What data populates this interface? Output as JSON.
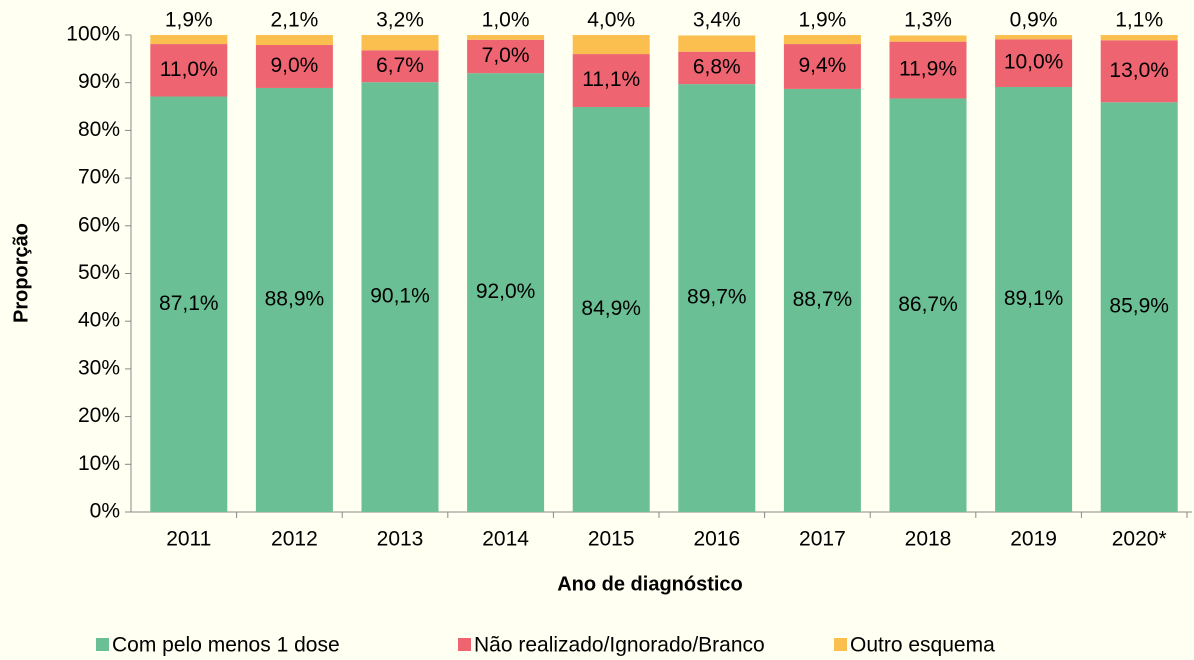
{
  "chart_data": {
    "type": "stacked_bar",
    "x_label": "Ano de diagnóstico",
    "y_label": "Proporção",
    "categories": [
      "2011",
      "2012",
      "2013",
      "2014",
      "2015",
      "2016",
      "2017",
      "2018",
      "2019",
      "2020*"
    ],
    "series": [
      {
        "name": "Com pelo menos 1 dose",
        "color": "#6abf94",
        "values": [
          87.1,
          88.9,
          90.1,
          92.0,
          84.9,
          89.7,
          88.7,
          86.7,
          89.1,
          85.9
        ],
        "value_labels": [
          "87,1%",
          "88,9%",
          "90,1%",
          "92,0%",
          "84,9%",
          "89,7%",
          "88,7%",
          "86,7%",
          "89,1%",
          "85,9%"
        ]
      },
      {
        "name": "Não realizado/Ignorado/Branco",
        "color": "#ee6470",
        "values": [
          11.0,
          9.0,
          6.7,
          7.0,
          11.1,
          6.8,
          9.4,
          11.9,
          10.0,
          13.0
        ],
        "value_labels": [
          "11,0%",
          "9,0%",
          "6,7%",
          "7,0%",
          "11,1%",
          "6,8%",
          "9,4%",
          "11,9%",
          "10,0%",
          "13,0%"
        ]
      },
      {
        "name": "Outro esquema",
        "color": "#fbbf4f",
        "values": [
          1.9,
          2.1,
          3.2,
          1.0,
          4.0,
          3.4,
          1.9,
          1.3,
          0.9,
          1.1
        ],
        "value_labels": [
          "1,9%",
          "2,1%",
          "3,2%",
          "1,0%",
          "4,0%",
          "3,4%",
          "1,9%",
          "1,3%",
          "0,9%",
          "1,1%"
        ]
      }
    ],
    "ylim": [
      0,
      100
    ],
    "yticks": [
      {
        "value": 0,
        "label": "0%"
      },
      {
        "value": 10,
        "label": "10%"
      },
      {
        "value": 20,
        "label": "20%"
      },
      {
        "value": 30,
        "label": "30%"
      },
      {
        "value": 40,
        "label": "40%"
      },
      {
        "value": 50,
        "label": "50%"
      },
      {
        "value": 60,
        "label": "60%"
      },
      {
        "value": 70,
        "label": "70%"
      },
      {
        "value": 80,
        "label": "80%"
      },
      {
        "value": 90,
        "label": "90%"
      },
      {
        "value": 100,
        "label": "100%"
      }
    ],
    "legend": "bottom",
    "grid": false
  }
}
